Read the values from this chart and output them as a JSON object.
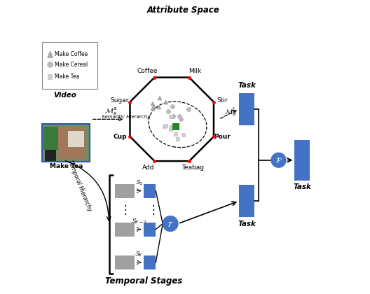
{
  "fig_width": 5.28,
  "fig_height": 4.2,
  "dpi": 100,
  "blue_color": "#4472C4",
  "blue_light": "#5B8BD0",
  "octagon_labels": [
    "Coffee",
    "Milk",
    "Stir",
    "Pour",
    "Teabag",
    "Add",
    "Cup",
    "Sugar"
  ],
  "title_attr": "Attribute Space",
  "title_temp": "Temporal Stages",
  "legend_items": [
    "Make Coffee",
    "Make Cereal",
    "Make Tea"
  ]
}
